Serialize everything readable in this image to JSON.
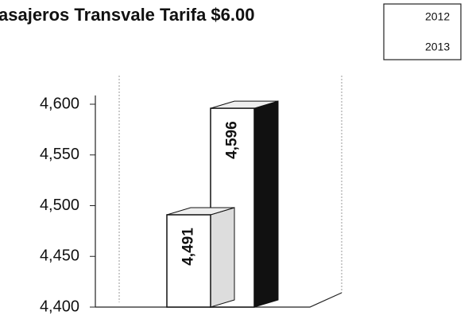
{
  "chart_data": {
    "type": "bar3d",
    "title": "asajeros Transvale Tarifa $6.00",
    "categories": [
      null
    ],
    "series": [
      {
        "name": "2012",
        "color": "#ffffff",
        "values": [
          4491
        ],
        "value_labels": [
          "4,491"
        ]
      },
      {
        "name": "2013",
        "color": "#ffffff",
        "values": [
          4596
        ],
        "value_labels": [
          "4,596"
        ]
      }
    ],
    "ylim": [
      4400,
      4600
    ],
    "yticks": [
      {
        "value": 4400,
        "label": "4,400"
      },
      {
        "value": 4450,
        "label": "4,450"
      },
      {
        "value": 4500,
        "label": "4,500"
      },
      {
        "value": 4550,
        "label": "4,550"
      },
      {
        "value": 4600,
        "label": "4,600"
      }
    ],
    "legend": "top-right"
  }
}
